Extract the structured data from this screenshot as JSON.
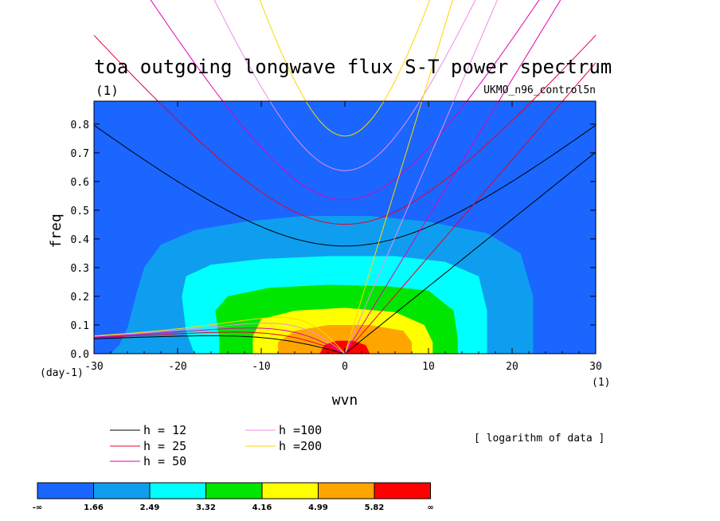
{
  "chart_data": {
    "type": "heatmap",
    "title": "toa outgoing longwave flux S-T power spectrum",
    "subtitle_left": "(1)",
    "subtitle_right": "UKMO_n96_control5n",
    "xlabel": "wvn",
    "ylabel": "freq",
    "x_unit": "(1)",
    "y_unit": "(day-1)",
    "xlim": [
      -30,
      30
    ],
    "ylim": [
      0,
      0.88
    ],
    "x_ticks": [
      {
        "value": -30,
        "label": "-30"
      },
      {
        "value": -20,
        "label": "-20"
      },
      {
        "value": -10,
        "label": "-10"
      },
      {
        "value": 0,
        "label": "0"
      },
      {
        "value": 10,
        "label": "10"
      },
      {
        "value": 20,
        "label": "20"
      },
      {
        "value": 30,
        "label": "30"
      }
    ],
    "y_ticks": [
      {
        "value": 0.0,
        "label": "0.0"
      },
      {
        "value": 0.1,
        "label": "0.1"
      },
      {
        "value": 0.2,
        "label": "0.2"
      },
      {
        "value": 0.3,
        "label": "0.3"
      },
      {
        "value": 0.4,
        "label": "0.4"
      },
      {
        "value": 0.5,
        "label": "0.5"
      },
      {
        "value": 0.6,
        "label": "0.6"
      },
      {
        "value": 0.7,
        "label": "0.7"
      },
      {
        "value": 0.8,
        "label": "0.8"
      }
    ],
    "note": "[ logarithm of data ]",
    "colorbar": {
      "labels": [
        "-∞",
        "1.66",
        "2.49",
        "3.32",
        "4.16",
        "4.99",
        "5.82",
        "∞"
      ],
      "colors": [
        "#1a66ff",
        "#0f9eef",
        "#00ffff",
        "#00e600",
        "#ffff00",
        "#ffa500",
        "#ff0000"
      ]
    },
    "dispersion_curves": [
      {
        "name": "h = 12",
        "h": 12,
        "color": "#000000"
      },
      {
        "name": "h = 25",
        "h": 25,
        "color": "#e8002a"
      },
      {
        "name": "h = 50",
        "h": 50,
        "color": "#e000b8"
      },
      {
        "name": "h =100",
        "h": 100,
        "color": "#f08ce6"
      },
      {
        "name": "h =200",
        "h": 200,
        "color": "#ffd700"
      }
    ]
  }
}
